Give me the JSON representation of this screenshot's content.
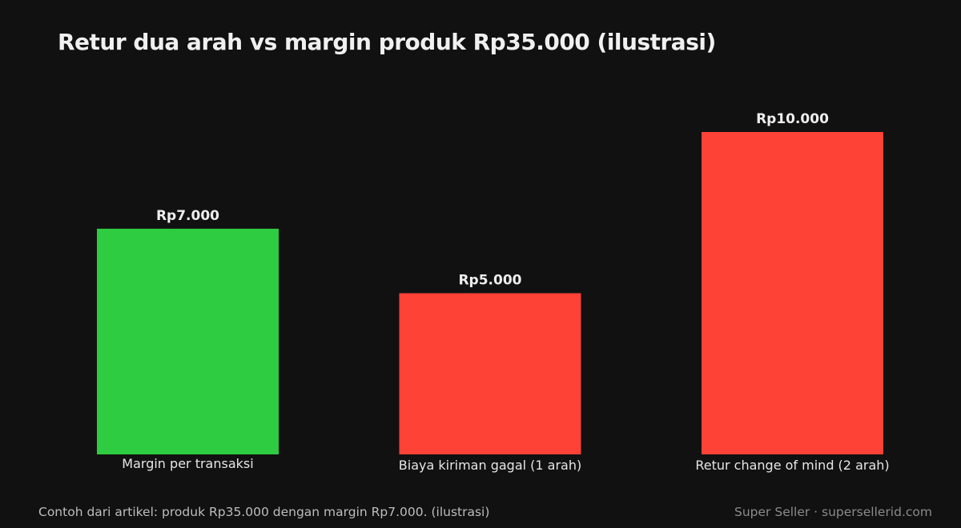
{
  "chart_data": {
    "type": "bar",
    "title": "Retur dua arah vs margin produk Rp35.000 (ilustrasi)",
    "xlabel": "",
    "ylabel": "",
    "categories": [
      "Margin per transaksi",
      "Biaya kiriman gagal (1 arah)",
      "Retur change of mind (2 arah)"
    ],
    "values": [
      7000,
      5000,
      10000
    ],
    "value_labels": [
      "Rp7.000",
      "Rp5.000",
      "Rp10.000"
    ],
    "colors": [
      "#2ecc40",
      "#ff4136",
      "#ff4136"
    ],
    "ylim": [
      0,
      10000
    ],
    "grid": false,
    "legend": "none"
  },
  "footer": {
    "note": "Contoh dari artikel: produk Rp35.000 dengan margin Rp7.000. (ilustrasi)",
    "credit": "Super Seller · supersellerid.com"
  }
}
